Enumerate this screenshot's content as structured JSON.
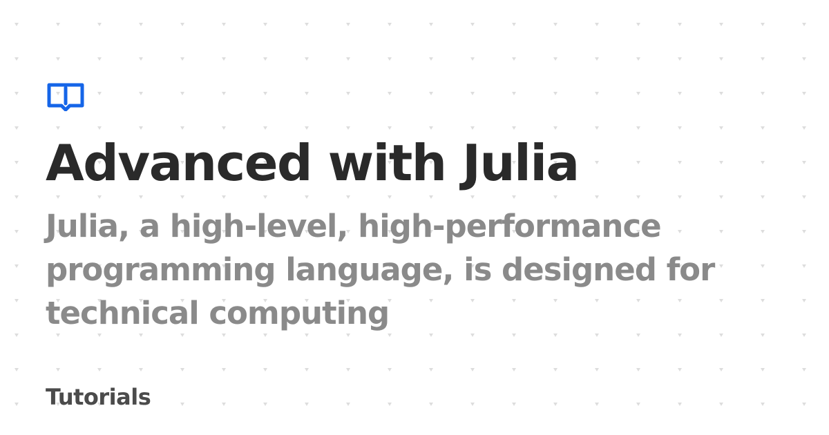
{
  "card": {
    "title": "Advanced with Julia",
    "description": "Julia, a high-level, high-performance programming language, is designed for technical computing",
    "section": "Tutorials"
  },
  "logo": {
    "icon": "open-book-icon"
  },
  "colors": {
    "background": "#ffffff",
    "title": "#2a2a2a",
    "description": "#8a8a8a",
    "section": "#4b4b4b",
    "accent": "#1565e8",
    "dots": "#d9d9d9"
  }
}
